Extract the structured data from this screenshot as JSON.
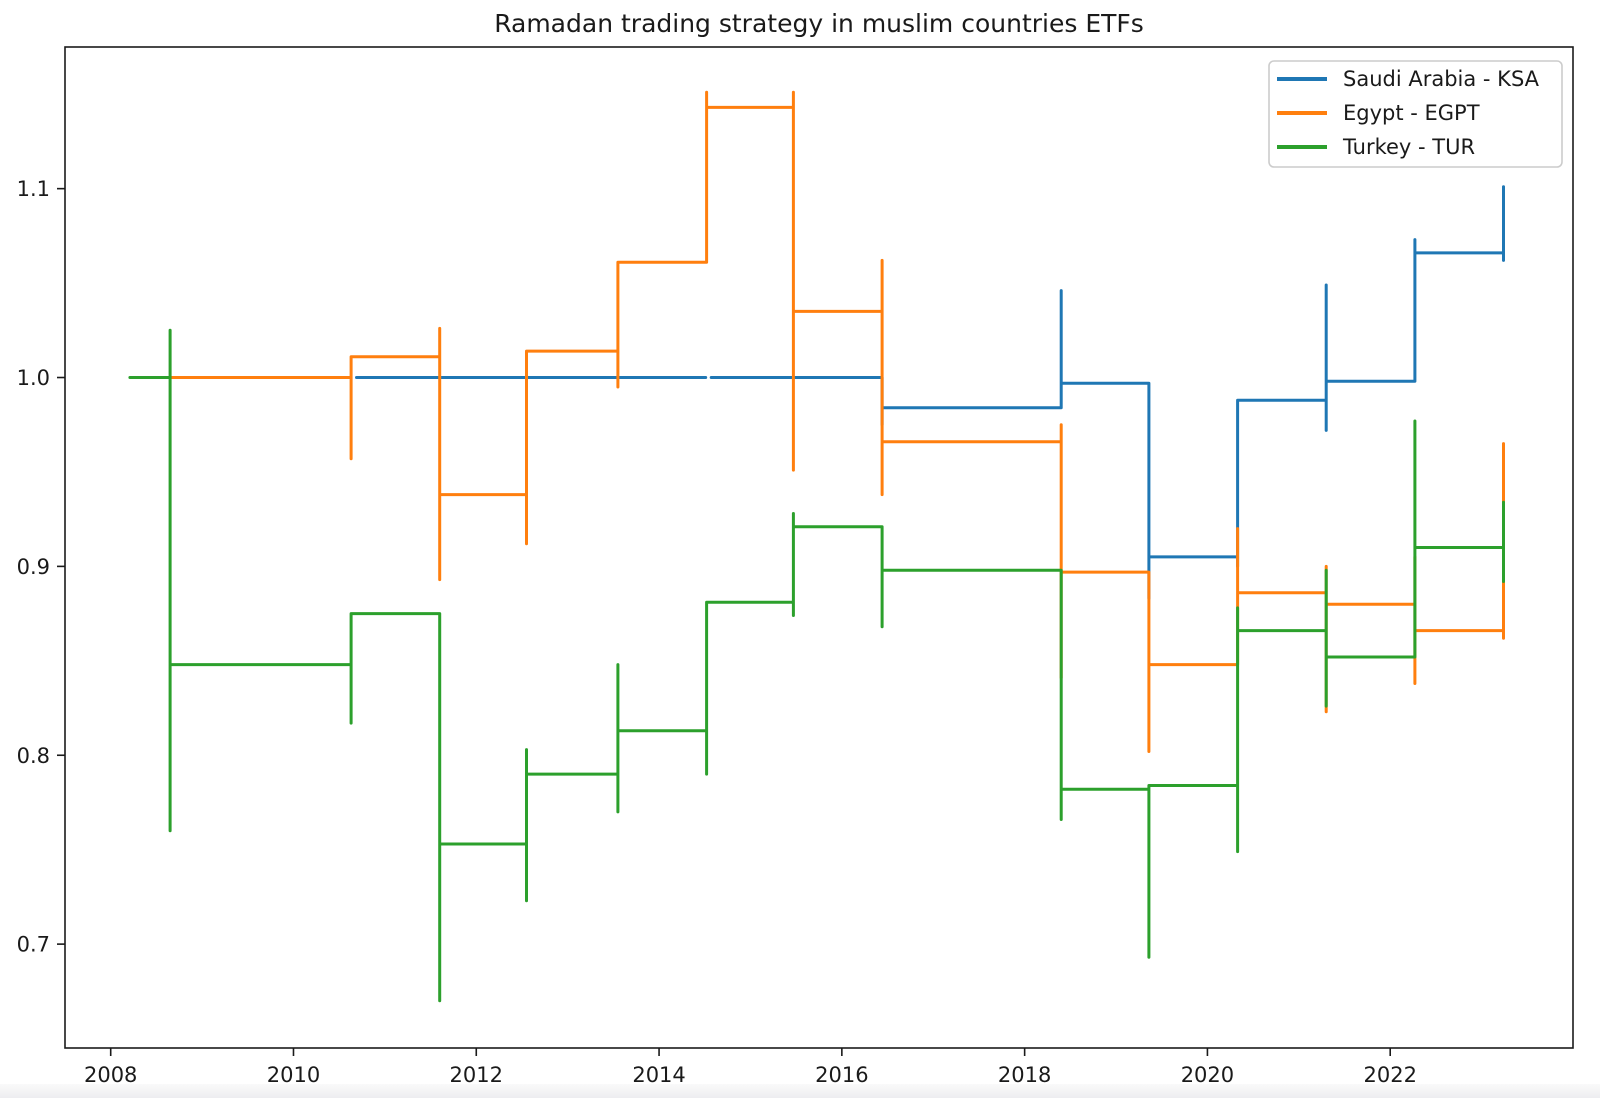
{
  "chart_data": {
    "type": "line",
    "title": "Ramadan trading strategy in muslim countries ETFs",
    "xlabel": "",
    "ylabel": "",
    "grid": false,
    "legend_position": "upper right",
    "xlim": [
      2007.5,
      2024.0
    ],
    "ylim": [
      0.645,
      1.175
    ],
    "x_ticks": [
      {
        "label": "2008",
        "value": 2008
      },
      {
        "label": "2010",
        "value": 2010
      },
      {
        "label": "2012",
        "value": 2012
      },
      {
        "label": "2014",
        "value": 2014
      },
      {
        "label": "2016",
        "value": 2016
      },
      {
        "label": "2018",
        "value": 2018
      },
      {
        "label": "2020",
        "value": 2020
      },
      {
        "label": "2022",
        "value": 2022
      }
    ],
    "y_ticks": [
      {
        "label": "0.7",
        "value": 0.7
      },
      {
        "label": "0.8",
        "value": 0.8
      },
      {
        "label": "0.9",
        "value": 0.9
      },
      {
        "label": "1.0",
        "value": 1.0
      },
      {
        "label": "1.1",
        "value": 1.1
      }
    ],
    "series": [
      {
        "name": "Saudi Arabia - KSA",
        "color": "#1f77b4",
        "segments": [
          [
            [
              2010.69,
              1.0
            ],
            [
              2014.51,
              1.0
            ]
          ],
          [
            [
              2014.57,
              1.0
            ],
            [
              2016.44,
              1.0
            ],
            [
              2016.44,
              0.975
            ],
            [
              2016.44,
              0.984
            ],
            [
              2018.4,
              0.984
            ],
            [
              2018.4,
              1.046
            ],
            [
              2018.4,
              0.997
            ],
            [
              2019.36,
              0.997
            ],
            [
              2019.36,
              0.883
            ],
            [
              2019.36,
              0.905
            ],
            [
              2020.33,
              0.905
            ],
            [
              2020.33,
              0.973
            ],
            [
              2020.33,
              0.9
            ],
            [
              2020.33,
              0.988
            ],
            [
              2021.3,
              0.988
            ],
            [
              2021.3,
              1.049
            ],
            [
              2021.3,
              0.972
            ],
            [
              2021.3,
              0.998
            ],
            [
              2022.27,
              0.998
            ],
            [
              2022.27,
              1.073
            ],
            [
              2022.27,
              1.032
            ],
            [
              2022.27,
              1.066
            ],
            [
              2023.24,
              1.066
            ],
            [
              2023.24,
              1.101
            ],
            [
              2023.24,
              1.062
            ]
          ]
        ]
      },
      {
        "name": "Egypt - EGPT",
        "color": "#ff7f0e",
        "segments": [
          [
            [
              2008.66,
              1.0
            ],
            [
              2010.63,
              1.0
            ],
            [
              2010.63,
              0.957
            ],
            [
              2010.63,
              1.011
            ],
            [
              2011.6,
              1.011
            ],
            [
              2011.6,
              1.026
            ],
            [
              2011.6,
              0.893
            ],
            [
              2011.6,
              0.938
            ],
            [
              2012.55,
              0.938
            ],
            [
              2012.55,
              0.912
            ],
            [
              2012.55,
              1.014
            ],
            [
              2013.55,
              1.014
            ],
            [
              2013.55,
              0.995
            ],
            [
              2013.55,
              1.061
            ],
            [
              2014.52,
              1.061
            ],
            [
              2014.52,
              1.151
            ],
            [
              2014.52,
              1.143
            ],
            [
              2015.47,
              1.143
            ],
            [
              2015.47,
              1.151
            ],
            [
              2015.47,
              0.951
            ],
            [
              2015.47,
              1.035
            ],
            [
              2016.44,
              1.035
            ],
            [
              2016.44,
              1.062
            ],
            [
              2016.44,
              0.938
            ],
            [
              2016.44,
              0.966
            ],
            [
              2018.4,
              0.966
            ],
            [
              2018.4,
              0.975
            ],
            [
              2018.4,
              0.841
            ],
            [
              2018.4,
              0.897
            ],
            [
              2019.36,
              0.897
            ],
            [
              2019.36,
              0.802
            ],
            [
              2019.36,
              0.848
            ],
            [
              2020.33,
              0.848
            ],
            [
              2020.33,
              0.92
            ],
            [
              2020.33,
              0.863
            ],
            [
              2020.33,
              0.886
            ],
            [
              2021.3,
              0.886
            ],
            [
              2021.3,
              0.9
            ],
            [
              2021.3,
              0.823
            ],
            [
              2021.3,
              0.88
            ],
            [
              2022.27,
              0.88
            ],
            [
              2022.27,
              0.905
            ],
            [
              2022.27,
              0.838
            ],
            [
              2022.27,
              0.866
            ],
            [
              2023.24,
              0.866
            ],
            [
              2023.24,
              0.862
            ],
            [
              2023.24,
              0.965
            ]
          ]
        ]
      },
      {
        "name": "Turkey - TUR",
        "color": "#2ca02c",
        "segments": [
          [
            [
              2008.21,
              1.0
            ],
            [
              2008.65,
              1.0
            ],
            [
              2008.65,
              1.025
            ],
            [
              2008.65,
              0.76
            ],
            [
              2008.65,
              0.848
            ],
            [
              2010.63,
              0.848
            ],
            [
              2010.63,
              0.817
            ],
            [
              2010.63,
              0.875
            ],
            [
              2011.6,
              0.875
            ],
            [
              2011.6,
              0.67
            ],
            [
              2011.6,
              0.753
            ],
            [
              2012.55,
              0.753
            ],
            [
              2012.55,
              0.723
            ],
            [
              2012.55,
              0.803
            ],
            [
              2012.55,
              0.79
            ],
            [
              2013.55,
              0.79
            ],
            [
              2013.55,
              0.77
            ],
            [
              2013.55,
              0.848
            ],
            [
              2013.55,
              0.813
            ],
            [
              2014.52,
              0.813
            ],
            [
              2014.52,
              0.79
            ],
            [
              2014.52,
              0.881
            ],
            [
              2015.47,
              0.881
            ],
            [
              2015.47,
              0.874
            ],
            [
              2015.47,
              0.928
            ],
            [
              2015.47,
              0.921
            ],
            [
              2016.44,
              0.921
            ],
            [
              2016.44,
              0.868
            ],
            [
              2016.44,
              0.898
            ],
            [
              2018.4,
              0.898
            ],
            [
              2018.4,
              0.766
            ],
            [
              2018.4,
              0.782
            ],
            [
              2019.36,
              0.782
            ],
            [
              2019.36,
              0.693
            ],
            [
              2019.36,
              0.784
            ],
            [
              2020.33,
              0.784
            ],
            [
              2020.33,
              0.749
            ],
            [
              2020.33,
              0.878
            ],
            [
              2020.33,
              0.866
            ],
            [
              2021.3,
              0.866
            ],
            [
              2021.3,
              0.898
            ],
            [
              2021.3,
              0.826
            ],
            [
              2021.3,
              0.852
            ],
            [
              2022.27,
              0.852
            ],
            [
              2022.27,
              0.977
            ],
            [
              2022.27,
              0.896
            ],
            [
              2022.27,
              0.91
            ],
            [
              2023.24,
              0.91
            ],
            [
              2023.24,
              0.934
            ],
            [
              2023.24,
              0.892
            ],
            [
              2023.24,
              0.928
            ]
          ]
        ]
      }
    ]
  }
}
